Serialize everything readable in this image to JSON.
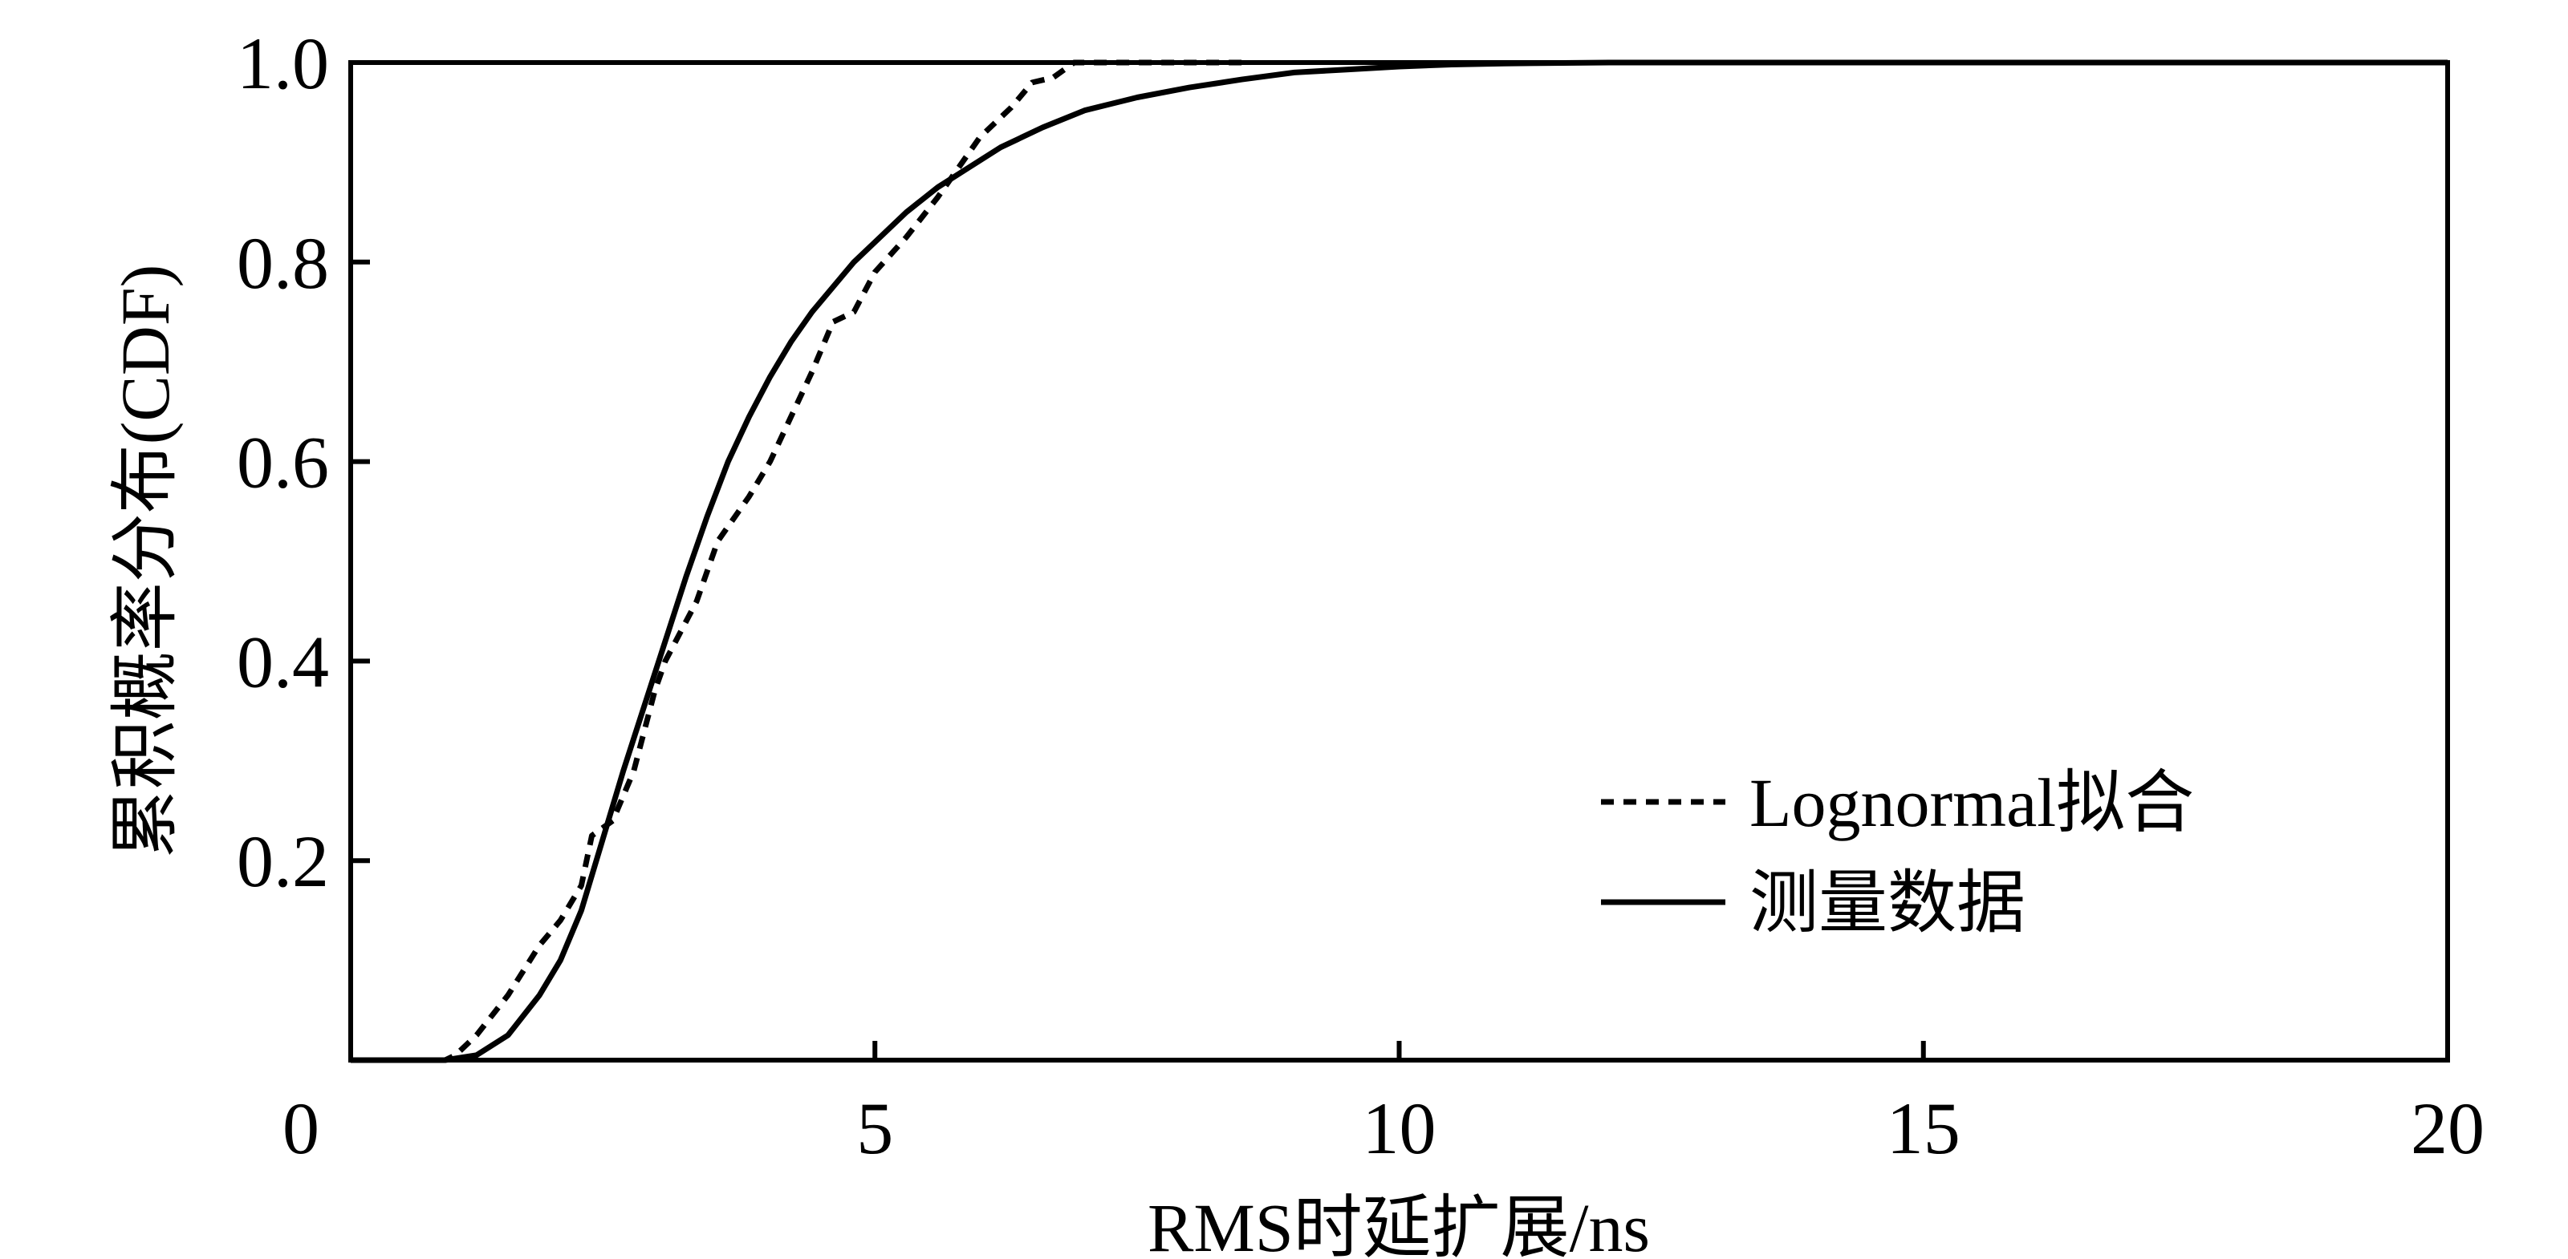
{
  "chart_data": {
    "type": "line",
    "title": "",
    "xlabel": "RMS时延扩展/ns",
    "ylabel": "累积概率分布(CDF)",
    "xlim": [
      0,
      20
    ],
    "ylim": [
      0,
      1
    ],
    "xticks": [
      0,
      5,
      10,
      15,
      20
    ],
    "xtick_labels": [
      "0",
      "5",
      "10",
      "15",
      "20"
    ],
    "yticks": [
      0.2,
      0.4,
      0.6,
      0.8,
      1.0
    ],
    "ytick_labels": [
      "0.2",
      "0.4",
      "0.6",
      "0.8",
      "1.0"
    ],
    "grid": false,
    "legend_position": "bottom-right",
    "series": [
      {
        "name": "Lognormal拟合",
        "style": "dashed",
        "color": "#000000",
        "x": [
          0,
          0.9,
          1.0,
          1.2,
          1.5,
          1.8,
          2.0,
          2.2,
          2.3,
          2.5,
          2.7,
          2.9,
          3.0,
          3.3,
          3.5,
          3.8,
          4.0,
          4.2,
          4.4,
          4.6,
          4.8,
          5.0,
          5.3,
          5.6,
          5.8,
          6.0,
          6.3,
          6.5,
          6.7,
          6.9,
          7.2,
          8.5
        ],
        "y": [
          0,
          0,
          0.005,
          0.025,
          0.065,
          0.115,
          0.14,
          0.175,
          0.225,
          0.24,
          0.29,
          0.37,
          0.4,
          0.46,
          0.52,
          0.565,
          0.6,
          0.645,
          0.69,
          0.74,
          0.75,
          0.79,
          0.825,
          0.865,
          0.895,
          0.925,
          0.955,
          0.98,
          0.985,
          1.0,
          1.0,
          1.0
        ]
      },
      {
        "name": "测量数据",
        "style": "solid",
        "color": "#000000",
        "x": [
          0,
          0.9,
          1.2,
          1.5,
          1.8,
          2.0,
          2.2,
          2.4,
          2.6,
          2.8,
          3.0,
          3.2,
          3.4,
          3.6,
          3.8,
          4.0,
          4.2,
          4.4,
          4.6,
          4.8,
          5.0,
          5.3,
          5.6,
          5.9,
          6.2,
          6.6,
          7.0,
          7.5,
          8.0,
          8.5,
          9.0,
          9.5,
          10.0,
          10.5,
          11.0,
          12.0,
          14.0,
          17.0,
          20.0
        ],
        "y": [
          0,
          0,
          0.005,
          0.025,
          0.065,
          0.1,
          0.15,
          0.22,
          0.29,
          0.355,
          0.42,
          0.485,
          0.545,
          0.6,
          0.645,
          0.685,
          0.72,
          0.75,
          0.775,
          0.8,
          0.82,
          0.85,
          0.875,
          0.895,
          0.915,
          0.935,
          0.952,
          0.965,
          0.975,
          0.983,
          0.99,
          0.993,
          0.996,
          0.998,
          0.999,
          1.0,
          1.0,
          1.0,
          1.0
        ]
      }
    ]
  }
}
